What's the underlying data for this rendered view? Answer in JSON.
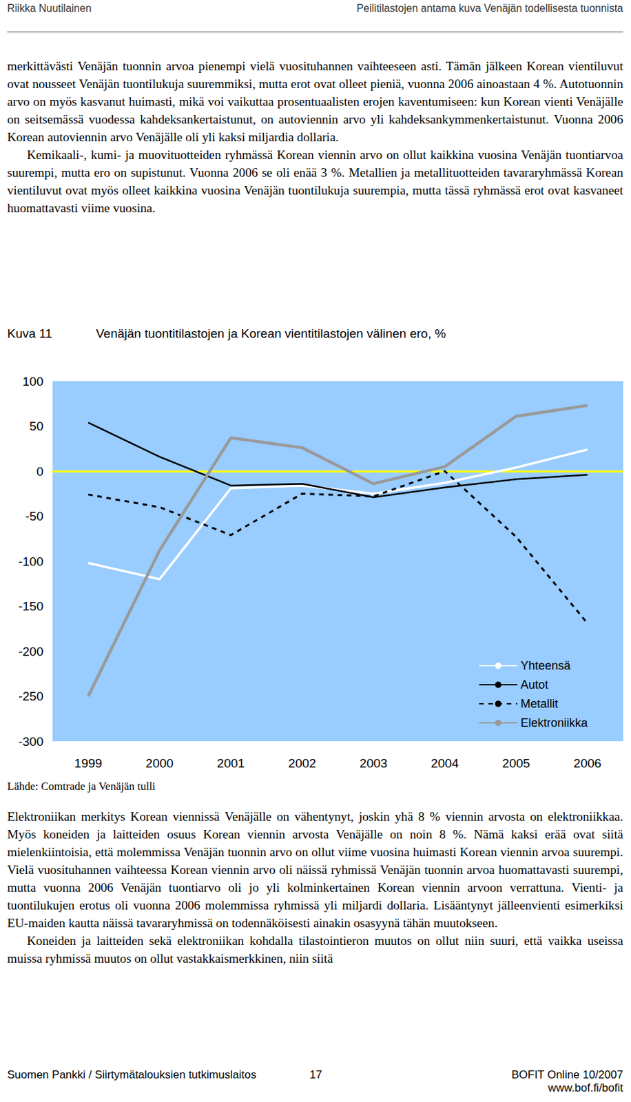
{
  "header": {
    "left": "Riikka Nuutilainen",
    "right": "Peilitilastojen antama kuva Venäjän todellisesta tuonnista"
  },
  "paragraphs_top": [
    {
      "indent": false,
      "text": "merkittävästi Venäjän tuonnin arvoa pienempi vielä vuosituhannen vaihteeseen asti. Tämän jälkeen Korean vientiluvut ovat nousseet Venäjän tuontilukuja suuremmiksi, mutta erot ovat olleet pieniä, vuonna 2006 ainoastaan 4 %. Autotuonnin arvo on myös kasvanut huimasti, mikä voi vaikuttaa prosentuaalisten erojen kaventumiseen: kun Korean vienti Venäjälle on seitsemässä vuodessa kahdeksankertaistunut, on autoviennin arvo yli kahdeksankymmenkertaistunut. Vuonna 2006 Korean autoviennin arvo Venäjälle oli yli kaksi miljardia dollaria."
    },
    {
      "indent": true,
      "text": "Kemikaali-, kumi- ja muovituotteiden ryhmässä Korean viennin arvo on ollut kaikkina vuosina Venäjän tuontiarvoa suurempi, mutta ero on supistunut. Vuonna 2006 se oli enää 3 %. Metallien ja metallituotteiden tavararyhmässä Korean vientiluvut ovat myös olleet kaikkina vuosina Venäjän tuontilukuja suurempia, mutta tässä ryhmässä erot ovat kasvaneet huomattavasti viime vuosina."
    }
  ],
  "figure": {
    "label": "Kuva 11",
    "source": "Lähde: Comtrade ja Venäjän tulli"
  },
  "chart_data": {
    "type": "line",
    "title": "Venäjän tuontitilastojen ja Korean vientitilastojen välinen ero, %",
    "categories": [
      "1999",
      "2000",
      "2001",
      "2002",
      "2003",
      "2004",
      "2005",
      "2006"
    ],
    "series": [
      {
        "name": "Yhteensä",
        "color": "#ffffff",
        "line_style": "solid",
        "values": [
          -102,
          -120,
          -19,
          -16,
          -25,
          -13,
          4,
          24
        ]
      },
      {
        "name": "Autot",
        "color": "#000000",
        "line_style": "solid",
        "values": [
          54,
          16,
          -16,
          -14,
          -29,
          -18,
          -9,
          -4
        ]
      },
      {
        "name": "Metallit",
        "color": "#000000",
        "line_style": "dashed",
        "values": [
          -26,
          -40,
          -71,
          -25,
          -28,
          0,
          -73,
          -169
        ]
      },
      {
        "name": "Elektroniikka",
        "color": "#999999",
        "line_style": "solid",
        "values": [
          -250,
          -88,
          37,
          26,
          -14,
          5,
          61,
          73
        ]
      }
    ],
    "ylim": [
      -300,
      100
    ],
    "yticks": [
      -300,
      -250,
      -200,
      -150,
      -100,
      -50,
      0,
      50,
      100
    ],
    "grid": false,
    "legend": "lower right"
  },
  "paragraphs_bottom": [
    {
      "indent": false,
      "text": "Elektroniikan merkitys Korean viennissä Venäjälle on vähentynyt, joskin yhä 8 % viennin arvosta on elektroniikkaa. Myös koneiden ja laitteiden osuus Korean viennin arvosta Venäjälle on noin 8 %. Nämä kaksi erää ovat siitä mielenkiintoisia, että molemmissa Venäjän tuonnin arvo on ollut viime vuosina huimasti Korean viennin arvoa suurempi. Vielä vuosituhannen vaihteessa Korean viennin arvo oli näissä ryhmissä Venäjän tuonnin arvoa huomattavasti suurempi, mutta vuonna 2006 Venäjän tuontiarvo oli jo yli kolminkertainen Korean viennin arvoon verrattuna. Vienti- ja tuontilukujen erotus oli vuonna 2006 molemmissa ryhmissä yli miljardi dollaria. Lisääntynyt jälleenvienti esimerkiksi EU-maiden kautta näissä tavararyhmissä on todennäköisesti ainakin osasyynä tähän muutokseen."
    },
    {
      "indent": true,
      "text": "Koneiden ja laitteiden sekä elektroniikan kohdalla tilastointieron muutos on ollut niin suuri, että vaikka useissa muissa ryhmissä muutos on ollut vastakkaismerkkinen, niin siitä"
    }
  ],
  "footer": {
    "left": "Suomen Pankki / Siirtymätalouksien tutkimuslaitos",
    "page": "17",
    "right": "BOFIT Online 10/2007",
    "url": "www.bof.fi/bofit"
  }
}
